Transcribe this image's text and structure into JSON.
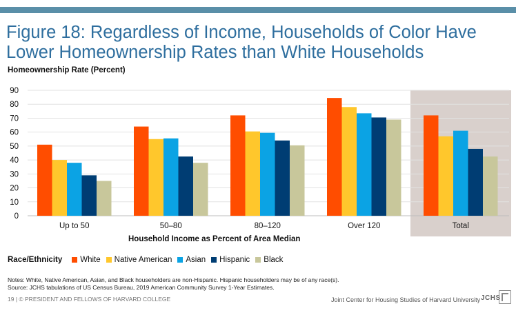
{
  "title_line1": "Figure 18: Regardless of Income, Households of Color Have",
  "title_line2": "Lower Homeownership Rates than White Households",
  "chart_data": {
    "type": "bar",
    "ylabel": "Homeownership Rate (Percent)",
    "xlabel": "Household Income as Percent of Area Median",
    "ylim": [
      0,
      90
    ],
    "yticks": [
      "90",
      "80",
      "70",
      "60",
      "50",
      "40",
      "30",
      "20",
      "10",
      "0"
    ],
    "categories": [
      "Up to 50",
      "50–80",
      "80–120",
      "Over 120",
      "Total"
    ],
    "highlight_category": "Total",
    "highlight_color": "#d9d0cc",
    "gridlines": true,
    "legend_title": "Race/Ethnicity",
    "legend_position": "bottom-left",
    "series": [
      {
        "name": "White",
        "color": "#ff4d00",
        "values": [
          51,
          64,
          72,
          84.5,
          72
        ]
      },
      {
        "name": "Native American",
        "color": "#ffc72c",
        "values": [
          40,
          55,
          60.5,
          78,
          57
        ]
      },
      {
        "name": "Asian",
        "color": "#0ba3e4",
        "values": [
          38,
          55.5,
          59.5,
          73.5,
          61
        ]
      },
      {
        "name": "Hispanic",
        "color": "#003d73",
        "values": [
          29,
          42.5,
          54,
          70.5,
          48
        ]
      },
      {
        "name": "Black",
        "color": "#c8c79b",
        "values": [
          25,
          38,
          50.5,
          69,
          42.5
        ]
      }
    ]
  },
  "notes": {
    "line1": "Notes: White, Native American, Asian, and Black householders are non-Hispanic. Hispanic householders may be of any race(s).",
    "line2": "Source: JCHS tabulations of US Census Bureau, 2019 American Community Survey 1-Year Estimates."
  },
  "footer": {
    "left": "19 | © PRESIDENT AND FELLOWS OF HARVARD COLLEGE",
    "right": "Joint Center for Housing Studies of Harvard University",
    "logo": "JCHS"
  },
  "colors": {
    "title": "#2e6e9e",
    "top_bar": "#5a8fa8"
  }
}
